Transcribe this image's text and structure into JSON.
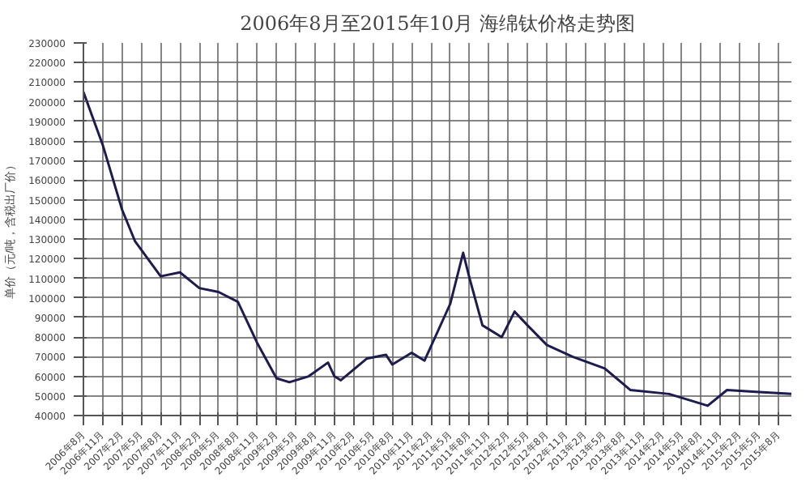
{
  "chart_data": {
    "type": "line",
    "title": "2006年8月至2015年10月 海绵钛价格走势图",
    "ylabel": "单价（元/吨，含税出厂价）",
    "x": [
      "2006-08",
      "2006-11",
      "2007-02",
      "2007-04",
      "2007-06",
      "2007-08",
      "2007-11",
      "2008-02",
      "2008-05",
      "2008-08",
      "2008-11",
      "2009-02",
      "2009-04",
      "2009-07",
      "2009-10",
      "2009-11",
      "2009-12",
      "2010-04",
      "2010-07",
      "2010-08",
      "2010-11",
      "2011-01",
      "2011-05",
      "2011-07",
      "2011-08",
      "2011-10",
      "2012-01",
      "2012-03",
      "2012-05",
      "2012-08",
      "2012-12",
      "2013-05",
      "2013-09",
      "2014-03",
      "2014-09",
      "2014-12",
      "2015-05",
      "2015-10"
    ],
    "series": [
      {
        "color": "#1c1c50",
        "values": [
          205000,
          178000,
          145000,
          129000,
          120000,
          111000,
          113000,
          105000,
          103000,
          98000,
          77000,
          59000,
          57000,
          60000,
          67000,
          60000,
          58000,
          69000,
          71000,
          66000,
          72000,
          68000,
          97000,
          123000,
          110000,
          86000,
          80000,
          93000,
          86000,
          76000,
          70000,
          64000,
          53000,
          51000,
          45000,
          53000,
          52000,
          51000
        ]
      }
    ],
    "xlim": [
      "2006-08",
      "2015-10"
    ],
    "xticks": [
      {
        "value": "2006-08",
        "label": "2006年8月"
      },
      {
        "value": "2006-11",
        "label": "2006年11月"
      },
      {
        "value": "2007-02",
        "label": "2007年2月"
      },
      {
        "value": "2007-05",
        "label": "2007年5月"
      },
      {
        "value": "2007-08",
        "label": "2007年8月"
      },
      {
        "value": "2007-11",
        "label": "2007年11月"
      },
      {
        "value": "2008-02",
        "label": "2008年2月"
      },
      {
        "value": "2008-05",
        "label": "2008年5月"
      },
      {
        "value": "2008-08",
        "label": "2008年8月"
      },
      {
        "value": "2008-11",
        "label": "2008年11月"
      },
      {
        "value": "2009-02",
        "label": "2009年2月"
      },
      {
        "value": "2009-05",
        "label": "2009年5月"
      },
      {
        "value": "2009-08",
        "label": "2009年8月"
      },
      {
        "value": "2009-11",
        "label": "2009年11月"
      },
      {
        "value": "2010-02",
        "label": "2010年2月"
      },
      {
        "value": "2010-05",
        "label": "2010年5月"
      },
      {
        "value": "2010-08",
        "label": "2010年8月"
      },
      {
        "value": "2010-11",
        "label": "2010年11月"
      },
      {
        "value": "2011-02",
        "label": "2011年2月"
      },
      {
        "value": "2011-05",
        "label": "2011年5月"
      },
      {
        "value": "2011-08",
        "label": "2011年8月"
      },
      {
        "value": "2011-11",
        "label": "2011年11月"
      },
      {
        "value": "2012-02",
        "label": "2012年2月"
      },
      {
        "value": "2012-05",
        "label": "2012年5月"
      },
      {
        "value": "2012-08",
        "label": "2012年8月"
      },
      {
        "value": "2012-11",
        "label": "2012年11月"
      },
      {
        "value": "2013-02",
        "label": "2013年2月"
      },
      {
        "value": "2013-05",
        "label": "2013年5月"
      },
      {
        "value": "2013-08",
        "label": "2013年8月"
      },
      {
        "value": "2013-11",
        "label": "2013年11月"
      },
      {
        "value": "2014-02",
        "label": "2014年2月"
      },
      {
        "value": "2014-05",
        "label": "2014年5月"
      },
      {
        "value": "2014-08",
        "label": "2014年8月"
      },
      {
        "value": "2014-11",
        "label": "2014年11月"
      },
      {
        "value": "2015-02",
        "label": "2015年2月"
      },
      {
        "value": "2015-05",
        "label": "2015年5月"
      },
      {
        "value": "2015-08",
        "label": "2015年8月"
      }
    ],
    "ylim": [
      40000,
      230000
    ],
    "yticks": [
      40000,
      50000,
      60000,
      70000,
      80000,
      90000,
      100000,
      110000,
      120000,
      130000,
      140000,
      150000,
      160000,
      170000,
      180000,
      190000,
      200000,
      210000,
      220000,
      230000
    ],
    "grid": true,
    "marker": "none",
    "line_style": "solid"
  }
}
